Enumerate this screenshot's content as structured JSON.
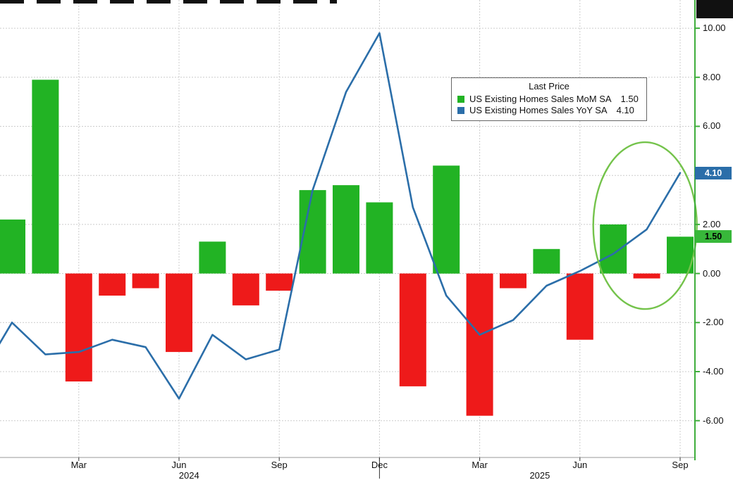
{
  "chart_data": {
    "type": "combo_bar_line",
    "categories": [
      "Jan 2024",
      "Feb 2024",
      "Mar 2024",
      "Apr 2024",
      "May 2024",
      "Jun 2024",
      "Jul 2024",
      "Aug 2024",
      "Sep 2024",
      "Oct 2024",
      "Nov 2024",
      "Dec 2024",
      "Jan 2025",
      "Feb 2025",
      "Mar 2025",
      "Apr 2025",
      "May 2025",
      "Jun 2025",
      "Jul 2025",
      "Aug 2025",
      "Sep 2025"
    ],
    "series": [
      {
        "name": "US Existing Homes Sales MoM SA",
        "kind": "bar",
        "last_value": 1.5,
        "values": [
          2.2,
          7.9,
          -4.4,
          -0.9,
          -0.6,
          -3.2,
          1.3,
          -1.3,
          -0.7,
          3.4,
          3.6,
          2.9,
          -4.6,
          4.4,
          -5.8,
          -0.6,
          1.0,
          -2.7,
          2.0,
          -0.2,
          1.5
        ]
      },
      {
        "name": "US Existing Homes Sales YoY SA",
        "kind": "line",
        "last_value": 4.1,
        "lead_point": {
          "index": -1,
          "value": -4.3
        },
        "values": [
          -2.0,
          -3.3,
          -3.2,
          -2.7,
          -3.0,
          -5.1,
          -2.5,
          -3.5,
          -3.1,
          3.4,
          7.4,
          9.8,
          2.7,
          -0.9,
          -2.5,
          -1.9,
          -0.5,
          0.1,
          0.8,
          1.8,
          4.1
        ]
      }
    ],
    "ylim": [
      -7.5,
      11.15
    ],
    "gridline_values": [
      10,
      8,
      6,
      4,
      2,
      0,
      -2,
      -4,
      -6
    ],
    "yticks": [
      {
        "value": 10,
        "label": "10.00"
      },
      {
        "value": 8,
        "label": "8.00"
      },
      {
        "value": 6,
        "label": "6.00"
      },
      {
        "value": 2,
        "label": "2.00"
      },
      {
        "value": 0,
        "label": "0.00"
      },
      {
        "value": -2,
        "label": "-2.00"
      },
      {
        "value": -4,
        "label": "-4.00"
      },
      {
        "value": -6,
        "label": "-6.00"
      }
    ],
    "xticks": [
      {
        "index": 2,
        "label": "Mar"
      },
      {
        "index": 5,
        "label": "Jun"
      },
      {
        "index": 8,
        "label": "Sep"
      },
      {
        "index": 11,
        "label": "Dec"
      },
      {
        "index": 14,
        "label": "Mar"
      },
      {
        "index": 17,
        "label": "Jun"
      },
      {
        "index": 20,
        "label": "Sep"
      }
    ],
    "year_labels": [
      {
        "label": "2024",
        "index": 5.3
      },
      {
        "label": "2025",
        "index": 15.8
      }
    ],
    "year_divider_index": 11,
    "legend": {
      "title": "Last Price",
      "items": [
        {
          "label": "US Existing Homes Sales MoM SA",
          "value": "1.50",
          "color": "#22b324"
        },
        {
          "label": "US Existing Homes Sales YoY SA",
          "value": "4.10",
          "color": "#2b6ea9"
        }
      ]
    },
    "axis_badges": [
      {
        "label": "4.10",
        "value": 4.1,
        "bg": "#2b6ea9",
        "fg": "#ffffff"
      },
      {
        "label": "1.50",
        "value": 1.5,
        "bg": "#38b83a",
        "fg": "#000000"
      }
    ],
    "highlight_ellipse": {
      "center_index": 18.95,
      "center_value": 1.95,
      "rx_months": 1.55,
      "ry_units": 3.4,
      "color": "#74c34b"
    },
    "colors": {
      "bar_positive": "#22b324",
      "bar_negative": "#ee1a1a",
      "line": "#2b6ea9",
      "axis": "#3fae3c",
      "grid": "#cccccc"
    },
    "legend_position": "top-right",
    "grid": true
  }
}
